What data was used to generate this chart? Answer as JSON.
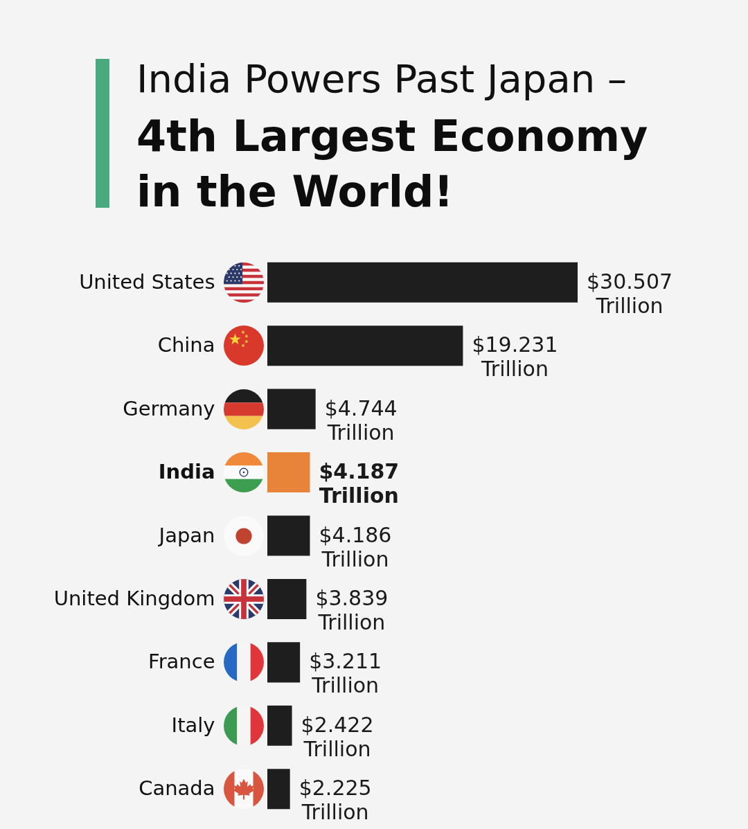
{
  "chart_data": {
    "type": "bar",
    "title": "India Powers Past Japan –",
    "subtitle": "4th Largest Economy in the World!",
    "orientation": "horizontal",
    "categories": [
      "United States",
      "China",
      "Germany",
      "India",
      "Japan",
      "United Kingdom",
      "France",
      "Italy",
      "Canada"
    ],
    "values": [
      30.507,
      19.231,
      4.744,
      4.187,
      4.186,
      3.839,
      3.211,
      2.422,
      2.225
    ],
    "colors": [
      "#1e1e1e",
      "#1e1e1e",
      "#1e1e1e",
      "#e8843a",
      "#1e1e1e",
      "#1e1e1e",
      "#1e1e1e",
      "#1e1e1e",
      "#1e1e1e"
    ],
    "value_labels": [
      "$30.507 Trillion",
      "$19.231 Trillion",
      "$4.744 Trillion",
      "$4.187 Trillion",
      "$4.186 Trillion",
      "$3.839 Trillion",
      "$3.211 Trillion",
      "$2.422 Trillion",
      "$2.225 Trillion"
    ]
  }
}
